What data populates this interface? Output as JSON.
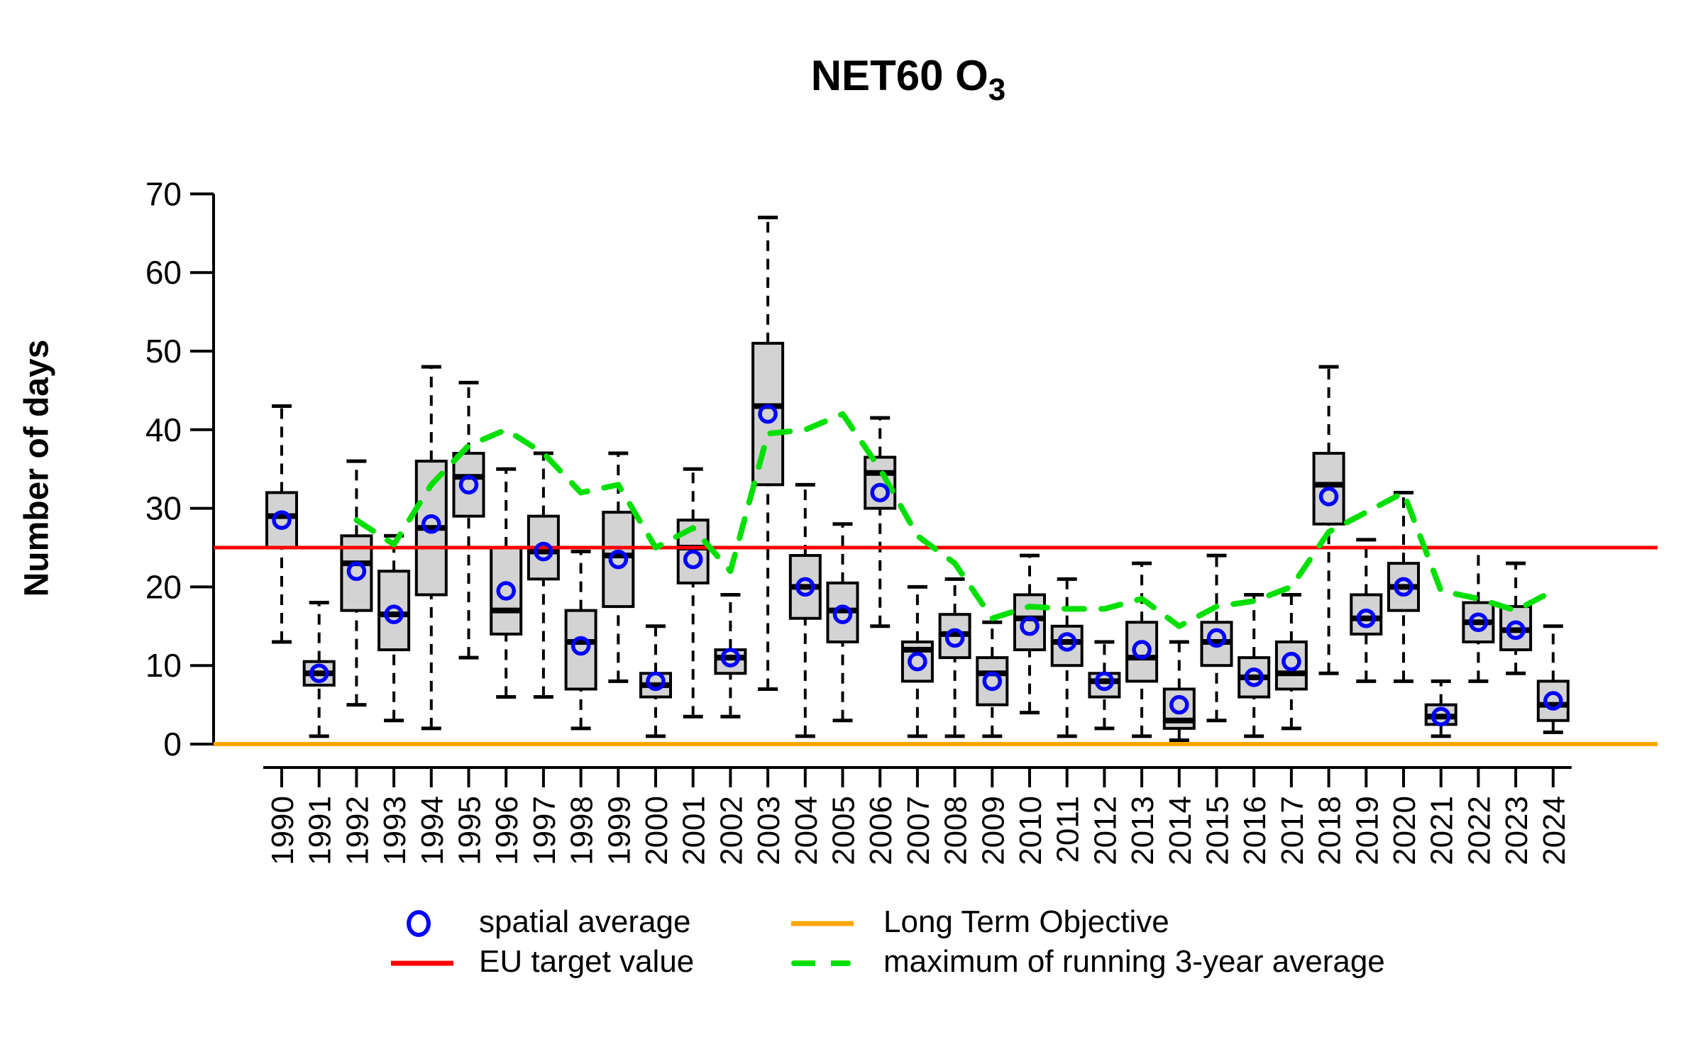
{
  "chart_data": {
    "type": "boxplot",
    "title": {
      "main": "NET60 O",
      "sub": "3"
    },
    "ylabel": "Number of days",
    "y_axis": {
      "min": 0,
      "max": 70,
      "ticks": [
        0,
        10,
        20,
        30,
        40,
        50,
        60,
        70
      ]
    },
    "x_axis": {
      "tick_label_rotation_deg": 90
    },
    "reference_lines": {
      "eu_target_value": 25,
      "long_term_objective": 0
    },
    "colors": {
      "box_fill": "#d3d3d3",
      "box_border": "#000000",
      "mean_marker": "#0000ff",
      "eu_target": "#ff0000",
      "long_term_objective": "#ffa500",
      "running_average": "#00e000",
      "axis": "#000000"
    },
    "boxes": [
      {
        "year": 1990,
        "low": 13,
        "q1": 25,
        "median": 29,
        "q3": 32,
        "high": 43,
        "mean": 28.5
      },
      {
        "year": 1991,
        "low": 1,
        "q1": 7.5,
        "median": 9,
        "q3": 10.5,
        "high": 18,
        "mean": 9
      },
      {
        "year": 1992,
        "low": 5,
        "q1": 17,
        "median": 23,
        "q3": 26.5,
        "high": 36,
        "mean": 22
      },
      {
        "year": 1993,
        "low": 3,
        "q1": 12,
        "median": 16.5,
        "q3": 22,
        "high": 26.5,
        "mean": 16.5
      },
      {
        "year": 1994,
        "low": 2,
        "q1": 19,
        "median": 27.5,
        "q3": 36,
        "high": 48,
        "mean": 28
      },
      {
        "year": 1995,
        "low": 11,
        "q1": 29,
        "median": 34,
        "q3": 37,
        "high": 46,
        "mean": 33
      },
      {
        "year": 1996,
        "low": 6,
        "q1": 14,
        "median": 17,
        "q3": 25,
        "high": 35,
        "mean": 19.5
      },
      {
        "year": 1997,
        "low": 6,
        "q1": 21,
        "median": 24.5,
        "q3": 29,
        "high": 37,
        "mean": 24.5
      },
      {
        "year": 1998,
        "low": 2,
        "q1": 7,
        "median": 13,
        "q3": 17,
        "high": 24.5,
        "mean": 12.5
      },
      {
        "year": 1999,
        "low": 8,
        "q1": 17.5,
        "median": 24,
        "q3": 29.5,
        "high": 37,
        "mean": 23.5
      },
      {
        "year": 2000,
        "low": 1,
        "q1": 6,
        "median": 7.5,
        "q3": 9,
        "high": 15,
        "mean": 8
      },
      {
        "year": 2001,
        "low": 3.5,
        "q1": 20.5,
        "median": 25,
        "q3": 28.5,
        "high": 35,
        "mean": 23.5
      },
      {
        "year": 2002,
        "low": 3.5,
        "q1": 9,
        "median": 11,
        "q3": 12,
        "high": 19,
        "mean": 11
      },
      {
        "year": 2003,
        "low": 7,
        "q1": 33,
        "median": 43,
        "q3": 51,
        "high": 67,
        "mean": 42
      },
      {
        "year": 2004,
        "low": 1,
        "q1": 16,
        "median": 20,
        "q3": 24,
        "high": 33,
        "mean": 20
      },
      {
        "year": 2005,
        "low": 3,
        "q1": 13,
        "median": 17,
        "q3": 20.5,
        "high": 28,
        "mean": 16.5
      },
      {
        "year": 2006,
        "low": 15,
        "q1": 30,
        "median": 34.5,
        "q3": 36.5,
        "high": 41.5,
        "mean": 32
      },
      {
        "year": 2007,
        "low": 1,
        "q1": 8,
        "median": 12,
        "q3": 13,
        "high": 20,
        "mean": 10.5
      },
      {
        "year": 2008,
        "low": 1,
        "q1": 11,
        "median": 14,
        "q3": 16.5,
        "high": 21,
        "mean": 13.5
      },
      {
        "year": 2009,
        "low": 1,
        "q1": 5,
        "median": 9,
        "q3": 11,
        "high": 15.5,
        "mean": 8
      },
      {
        "year": 2010,
        "low": 4,
        "q1": 12,
        "median": 16,
        "q3": 19,
        "high": 24,
        "mean": 15
      },
      {
        "year": 2011,
        "low": 1,
        "q1": 10,
        "median": 13,
        "q3": 15,
        "high": 21,
        "mean": 13
      },
      {
        "year": 2012,
        "low": 2,
        "q1": 6,
        "median": 8,
        "q3": 9,
        "high": 13,
        "mean": 8
      },
      {
        "year": 2013,
        "low": 1,
        "q1": 8,
        "median": 11,
        "q3": 15.5,
        "high": 23,
        "mean": 12
      },
      {
        "year": 2014,
        "low": 0.5,
        "q1": 2,
        "median": 3,
        "q3": 7,
        "high": 13,
        "mean": 5
      },
      {
        "year": 2015,
        "low": 3,
        "q1": 10,
        "median": 13,
        "q3": 15.5,
        "high": 24,
        "mean": 13.5
      },
      {
        "year": 2016,
        "low": 1,
        "q1": 6,
        "median": 8.5,
        "q3": 11,
        "high": 19,
        "mean": 8.5
      },
      {
        "year": 2017,
        "low": 2,
        "q1": 7,
        "median": 9,
        "q3": 13,
        "high": 19,
        "mean": 10.5
      },
      {
        "year": 2018,
        "low": 9,
        "q1": 28,
        "median": 33,
        "q3": 37,
        "high": 48,
        "mean": 31.5
      },
      {
        "year": 2019,
        "low": 8,
        "q1": 14,
        "median": 16,
        "q3": 19,
        "high": 26,
        "mean": 16
      },
      {
        "year": 2020,
        "low": 8,
        "q1": 17,
        "median": 20,
        "q3": 23,
        "high": 32,
        "mean": 20
      },
      {
        "year": 2021,
        "low": 1,
        "q1": 2.5,
        "median": 3.5,
        "q3": 5,
        "high": 8,
        "mean": 3.5
      },
      {
        "year": 2022,
        "low": 8,
        "q1": 13,
        "median": 15.5,
        "q3": 18,
        "high": 25,
        "mean": 15.5
      },
      {
        "year": 2023,
        "low": 9,
        "q1": 12,
        "median": 14.5,
        "q3": 17.5,
        "high": 23,
        "mean": 14.5
      },
      {
        "year": 2024,
        "low": 1.5,
        "q1": 3,
        "median": 5,
        "q3": 8,
        "high": 15,
        "mean": 5.5
      }
    ],
    "max_running_3yr_avg": [
      {
        "year": 1992,
        "value": 28.5
      },
      {
        "year": 1993,
        "value": 25.4
      },
      {
        "year": 1994,
        "value": 33
      },
      {
        "year": 1995,
        "value": 38
      },
      {
        "year": 1996,
        "value": 40
      },
      {
        "year": 1997,
        "value": 37
      },
      {
        "year": 1998,
        "value": 32
      },
      {
        "year": 1999,
        "value": 33
      },
      {
        "year": 2000,
        "value": 25
      },
      {
        "year": 2001,
        "value": 27.5
      },
      {
        "year": 2002,
        "value": 22
      },
      {
        "year": 2003,
        "value": 39.5
      },
      {
        "year": 2004,
        "value": 40
      },
      {
        "year": 2005,
        "value": 42
      },
      {
        "year": 2006,
        "value": 35
      },
      {
        "year": 2007,
        "value": 26.5
      },
      {
        "year": 2008,
        "value": 23
      },
      {
        "year": 2009,
        "value": 16
      },
      {
        "year": 2010,
        "value": 17.5
      },
      {
        "year": 2011,
        "value": 17.2
      },
      {
        "year": 2012,
        "value": 17.2
      },
      {
        "year": 2013,
        "value": 18.5
      },
      {
        "year": 2014,
        "value": 15
      },
      {
        "year": 2015,
        "value": 17.5
      },
      {
        "year": 2016,
        "value": 18.2
      },
      {
        "year": 2017,
        "value": 20
      },
      {
        "year": 2018,
        "value": 27
      },
      {
        "year": 2019,
        "value": 29.5
      },
      {
        "year": 2020,
        "value": 32
      },
      {
        "year": 2021,
        "value": 19.5
      },
      {
        "year": 2022,
        "value": 18.5
      },
      {
        "year": 2023,
        "value": 17
      },
      {
        "year": 2024,
        "value": 19.5
      }
    ],
    "legend": {
      "spatial_average": "spatial average",
      "long_term_objective": "Long Term Objective",
      "eu_target_value": "EU target value",
      "max_running_average": "maximum of running 3-year average"
    }
  }
}
